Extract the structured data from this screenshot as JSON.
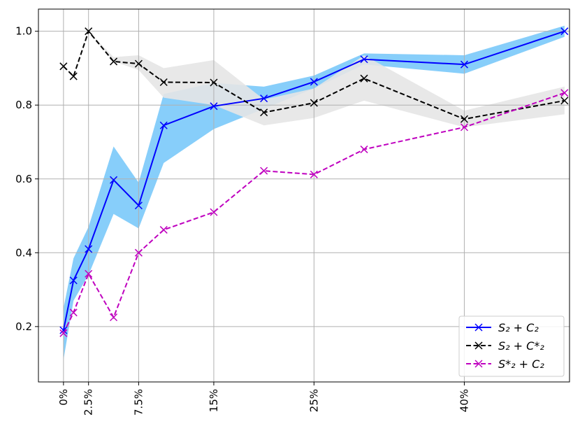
{
  "chart_data": {
    "type": "line",
    "title": "",
    "xlabel": "",
    "ylabel": "",
    "xlim": [
      -2.5,
      50.5
    ],
    "ylim": [
      0.05,
      1.06
    ],
    "grid": true,
    "legend_position": "lower-right",
    "x_ticks": [
      {
        "value": 0,
        "label": "0%"
      },
      {
        "value": 2.5,
        "label": "2.5%"
      },
      {
        "value": 7.5,
        "label": "7.5%"
      },
      {
        "value": 15,
        "label": "15%"
      },
      {
        "value": 25,
        "label": "25%"
      },
      {
        "value": 40,
        "label": "40%"
      }
    ],
    "y_ticks": [
      {
        "value": 0.2,
        "label": "0.2"
      },
      {
        "value": 0.4,
        "label": "0.4"
      },
      {
        "value": 0.6,
        "label": "0.6"
      },
      {
        "value": 0.8,
        "label": "0.8"
      },
      {
        "value": 1.0,
        "label": "1.0"
      }
    ],
    "series": [
      {
        "name": "S₂ + C₂",
        "color": "#0000ff",
        "dash": "solid",
        "band_color": "#87cefa",
        "x": [
          0,
          1,
          2.5,
          5,
          7.5,
          10,
          15,
          20,
          25,
          30,
          40,
          50
        ],
        "y": [
          0.19,
          0.325,
          0.41,
          0.597,
          0.528,
          0.745,
          0.797,
          0.818,
          0.863,
          0.924,
          0.91,
          1.0
        ],
        "lower": [
          0.11,
          0.27,
          0.34,
          0.505,
          0.466,
          0.643,
          0.735,
          0.79,
          0.845,
          0.91,
          0.885,
          0.985
        ],
        "upper": [
          0.25,
          0.385,
          0.47,
          0.688,
          0.59,
          0.83,
          0.86,
          0.85,
          0.88,
          0.94,
          0.935,
          1.015
        ]
      },
      {
        "name": "S₂ + C*₂",
        "color": "#000000",
        "dash": "dashed",
        "band_color": "#e6e6e6",
        "x": [
          0,
          1,
          2.5,
          5,
          7.5,
          10,
          15,
          20,
          25,
          30,
          40,
          50
        ],
        "y": [
          0.905,
          0.878,
          1.0,
          0.918,
          0.912,
          0.862,
          0.861,
          0.78,
          0.806,
          0.872,
          0.762,
          0.812
        ],
        "lower": [
          0.905,
          0.878,
          1.0,
          0.918,
          0.895,
          0.82,
          0.8,
          0.745,
          0.765,
          0.812,
          0.74,
          0.775
        ],
        "upper": [
          0.905,
          0.878,
          1.0,
          0.93,
          0.935,
          0.9,
          0.922,
          0.815,
          0.845,
          0.935,
          0.785,
          0.85
        ]
      },
      {
        "name": "S*₂ + C₂",
        "color": "#bf00bf",
        "dash": "dashed",
        "x": [
          0,
          1,
          2.5,
          5,
          7.5,
          10,
          15,
          20,
          25,
          30,
          40,
          50
        ],
        "y": [
          0.182,
          0.238,
          0.343,
          0.225,
          0.4,
          0.462,
          0.51,
          0.622,
          0.612,
          0.68,
          0.74,
          0.833
        ]
      }
    ]
  }
}
